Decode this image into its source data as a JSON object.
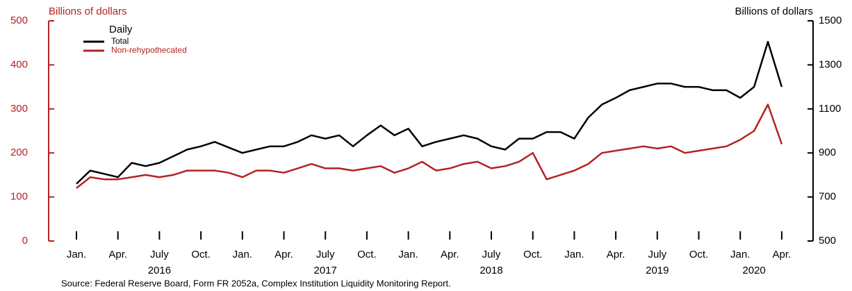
{
  "chart_data": {
    "type": "line",
    "legend_title": "Daily",
    "ylabel": "Billions of dollars",
    "y2label": "Billions of dollars",
    "source": "Source: Federal Reserve Board, Form FR 2052a, Complex Institution Liquidity Monitoring Report.",
    "x": [
      "2016-01",
      "2016-02",
      "2016-03",
      "2016-04",
      "2016-05",
      "2016-06",
      "2016-07",
      "2016-08",
      "2016-09",
      "2016-10",
      "2016-11",
      "2016-12",
      "2017-01",
      "2017-02",
      "2017-03",
      "2017-04",
      "2017-05",
      "2017-06",
      "2017-07",
      "2017-08",
      "2017-09",
      "2017-10",
      "2017-11",
      "2017-12",
      "2018-01",
      "2018-02",
      "2018-03",
      "2018-04",
      "2018-05",
      "2018-06",
      "2018-07",
      "2018-08",
      "2018-09",
      "2018-10",
      "2018-11",
      "2018-12",
      "2019-01",
      "2019-02",
      "2019-03",
      "2019-04",
      "2019-05",
      "2019-06",
      "2019-07",
      "2019-08",
      "2019-09",
      "2019-10",
      "2019-11",
      "2019-12",
      "2020-01",
      "2020-02",
      "2020-03",
      "2020-04"
    ],
    "series": [
      {
        "name": "Total",
        "color": "#000000",
        "axis": "y2",
        "values": [
          760,
          820,
          805,
          790,
          855,
          840,
          855,
          885,
          915,
          930,
          950,
          925,
          900,
          915,
          930,
          930,
          950,
          980,
          965,
          980,
          930,
          980,
          1025,
          980,
          1010,
          930,
          950,
          965,
          980,
          965,
          930,
          915,
          965,
          965,
          995,
          995,
          965,
          1060,
          1120,
          1150,
          1185,
          1200,
          1215,
          1215,
          1200,
          1200,
          1185,
          1185,
          1150,
          1200,
          1405,
          1200
        ]
      },
      {
        "name": "Non-rehypothecated",
        "color": "#b22222",
        "values": [
          120,
          145,
          140,
          140,
          145,
          150,
          145,
          150,
          160,
          160,
          160,
          155,
          145,
          160,
          160,
          155,
          165,
          175,
          165,
          165,
          160,
          165,
          170,
          155,
          165,
          180,
          160,
          165,
          175,
          180,
          165,
          170,
          180,
          200,
          140,
          150,
          160,
          175,
          200,
          205,
          210,
          215,
          210,
          215,
          200,
          205,
          210,
          215,
          230,
          250,
          310,
          220
        ]
      }
    ],
    "xticks": [
      {
        "value": "2016-01",
        "label": "Jan."
      },
      {
        "value": "2016-04",
        "label": "Apr."
      },
      {
        "value": "2016-07",
        "label": "July"
      },
      {
        "value": "2016-10",
        "label": "Oct."
      },
      {
        "value": "2017-01",
        "label": "Jan."
      },
      {
        "value": "2017-04",
        "label": "Apr."
      },
      {
        "value": "2017-07",
        "label": "July"
      },
      {
        "value": "2017-10",
        "label": "Oct."
      },
      {
        "value": "2018-01",
        "label": "Jan."
      },
      {
        "value": "2018-04",
        "label": "Apr."
      },
      {
        "value": "2018-07",
        "label": "July"
      },
      {
        "value": "2018-10",
        "label": "Oct."
      },
      {
        "value": "2019-01",
        "label": "Jan."
      },
      {
        "value": "2019-04",
        "label": "Apr."
      },
      {
        "value": "2019-07",
        "label": "July"
      },
      {
        "value": "2019-10",
        "label": "Oct."
      },
      {
        "value": "2020-01",
        "label": "Jan."
      },
      {
        "value": "2020-04",
        "label": "Apr."
      }
    ],
    "year_labels": [
      {
        "value": "2016-07",
        "label": "2016"
      },
      {
        "value": "2017-07",
        "label": "2017"
      },
      {
        "value": "2018-07",
        "label": "2018"
      },
      {
        "value": "2019-07",
        "label": "2019"
      },
      {
        "value": "2020-02",
        "label": "2020"
      }
    ],
    "ylim": [
      0,
      500
    ],
    "yticks": [
      0,
      100,
      200,
      300,
      400,
      500
    ],
    "ycolor": "#b22222",
    "y2lim": [
      500,
      1500
    ],
    "y2ticks": [
      500,
      700,
      900,
      1100,
      1300,
      1500
    ]
  }
}
